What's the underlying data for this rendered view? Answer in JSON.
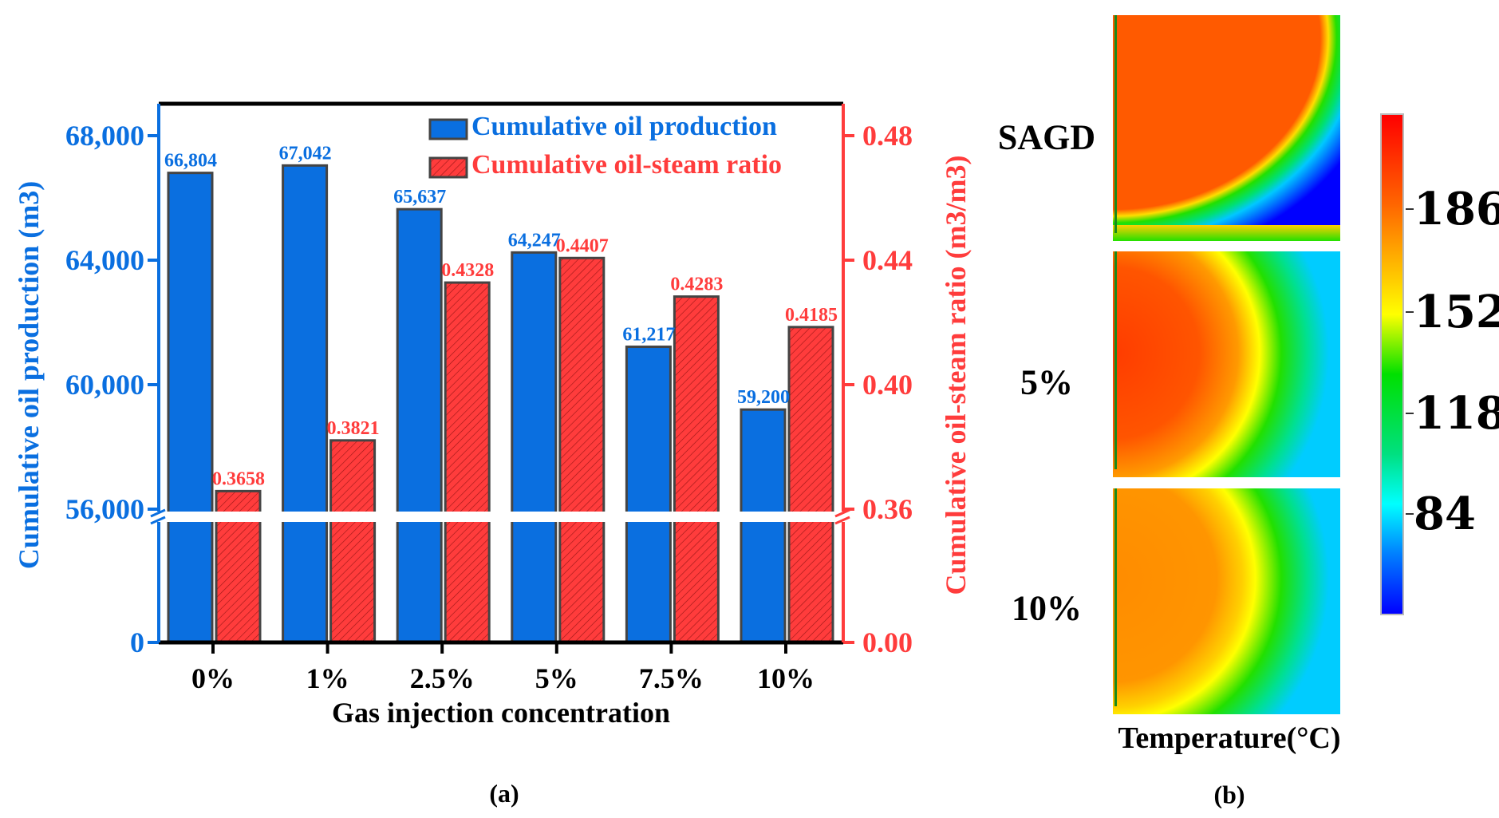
{
  "chart_data": {
    "type": "bar",
    "title": "",
    "xlabel": "Gas injection concentration",
    "ylabel": "Cumulative oil production (m3)",
    "y2label": "Cumulative oil-steam ratio (m3/m3)",
    "categories": [
      "0%",
      "1%",
      "2.5%",
      "5%",
      "7.5%",
      "10%"
    ],
    "series": [
      {
        "name": "Cumulative oil production",
        "axis": "left",
        "color": "#0a6fe0",
        "values": [
          66804,
          67042,
          65637,
          64247,
          61217,
          59200
        ],
        "labels": [
          "66,804",
          "67,042",
          "65,637",
          "64,247",
          "61,217",
          "59,200"
        ]
      },
      {
        "name": "Cumulative oil-steam ratio",
        "axis": "right",
        "color": "#ff3c3c",
        "values": [
          0.3658,
          0.3821,
          0.4328,
          0.4407,
          0.4283,
          0.4185
        ],
        "labels": [
          "0.3658",
          "0.3821",
          "0.4328",
          "0.4407",
          "0.4283",
          "0.4185"
        ]
      }
    ],
    "ylim": [
      56000,
      69000
    ],
    "y_ticks": [
      "68,000",
      "64,000",
      "60,000",
      "56,000",
      "0"
    ],
    "y_tick_values": [
      68000,
      64000,
      60000,
      56000,
      0
    ],
    "y2lim": [
      0.36,
      0.49
    ],
    "y2_ticks": [
      "0.48",
      "0.44",
      "0.40",
      "0.36",
      "0.00"
    ],
    "y2_tick_values": [
      0.48,
      0.44,
      0.4,
      0.36,
      0.0
    ],
    "axis_break": true,
    "legend_placement": "top-right",
    "panel_label": "(a)"
  },
  "heatmaps": {
    "panels": [
      "SAGD",
      "5%",
      "10%"
    ],
    "colorbar_ticks": [
      "186",
      "152",
      "118",
      "84"
    ],
    "colorbar_label": "Temperature(°C)",
    "panel_label": "(b)"
  }
}
